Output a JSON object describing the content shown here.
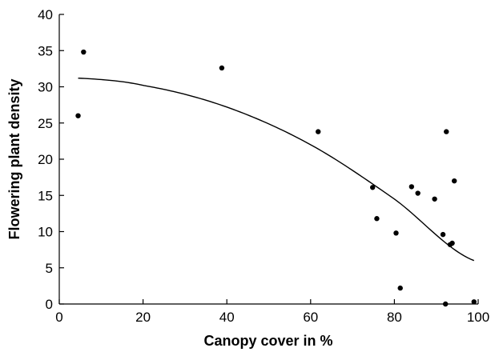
{
  "chart_data": {
    "type": "scatter",
    "title": "",
    "xlabel": "Canopy cover in %",
    "ylabel": "Flowering plant density",
    "xlim": [
      0,
      100
    ],
    "ylim": [
      0,
      40
    ],
    "x_ticks": [
      0,
      20,
      40,
      60,
      80,
      100
    ],
    "y_ticks": [
      0,
      5,
      10,
      15,
      20,
      25,
      30,
      35,
      40
    ],
    "grid": false,
    "points": [
      {
        "x": 4.5,
        "y": 26.0
      },
      {
        "x": 5.8,
        "y": 34.8
      },
      {
        "x": 38.8,
        "y": 32.6
      },
      {
        "x": 61.8,
        "y": 23.8
      },
      {
        "x": 74.8,
        "y": 16.1
      },
      {
        "x": 75.8,
        "y": 11.8
      },
      {
        "x": 80.4,
        "y": 9.8
      },
      {
        "x": 81.4,
        "y": 2.2
      },
      {
        "x": 84.1,
        "y": 16.2
      },
      {
        "x": 85.6,
        "y": 15.3
      },
      {
        "x": 89.6,
        "y": 14.5
      },
      {
        "x": 91.6,
        "y": 9.6
      },
      {
        "x": 92.4,
        "y": 23.8
      },
      {
        "x": 92.2,
        "y": 0.0
      },
      {
        "x": 93.3,
        "y": 8.2
      },
      {
        "x": 93.8,
        "y": 8.4
      },
      {
        "x": 94.3,
        "y": 17.0
      },
      {
        "x": 99.0,
        "y": 0.3
      }
    ],
    "fit_line": {
      "kind": "quadratic",
      "x_range": [
        4.5,
        99.0
      ],
      "points": [
        {
          "x": 4.5,
          "y": 31.2
        },
        {
          "x": 20.0,
          "y": 30.2
        },
        {
          "x": 40.0,
          "y": 27.2
        },
        {
          "x": 60.0,
          "y": 22.0
        },
        {
          "x": 80.0,
          "y": 14.5
        },
        {
          "x": 99.0,
          "y": 6.0
        }
      ]
    },
    "colors": {
      "points": "#000000",
      "line": "#000000",
      "axes": "#000000"
    }
  }
}
